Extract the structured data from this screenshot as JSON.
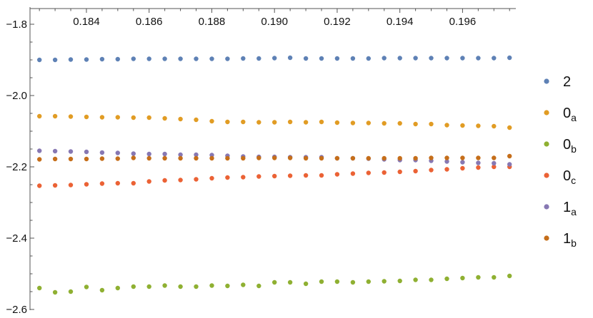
{
  "chart_data": {
    "type": "scatter",
    "title": "",
    "xlabel": "",
    "ylabel": "",
    "xlim": [
      0.1822,
      0.1977
    ],
    "ylim": [
      -2.6,
      -1.75
    ],
    "x_ticks": [
      0.184,
      0.186,
      0.188,
      0.19,
      0.192,
      0.194,
      0.196
    ],
    "x_tick_labels": [
      "0.184",
      "0.186",
      "0.188",
      "0.190",
      "0.192",
      "0.194",
      "0.196"
    ],
    "y_ticks": [
      -1.8,
      -2.0,
      -2.2,
      -2.4,
      -2.6
    ],
    "y_tick_labels": [
      "−1.8",
      "−2.0",
      "−2.2",
      "−2.4",
      "−2.6"
    ],
    "x_axis_position": "top",
    "grid": false,
    "legend_position": "right",
    "x": [
      0.1825,
      0.183,
      0.1835,
      0.184,
      0.1845,
      0.185,
      0.1855,
      0.186,
      0.1865,
      0.187,
      0.1875,
      0.188,
      0.1885,
      0.189,
      0.1895,
      0.19,
      0.1905,
      0.191,
      0.1915,
      0.192,
      0.1925,
      0.193,
      0.1935,
      0.194,
      0.1945,
      0.195,
      0.1955,
      0.196,
      0.1965,
      0.197,
      0.1975
    ],
    "series": [
      {
        "name": "2",
        "label_main": "2",
        "label_sub": "",
        "color": "#5e81b5",
        "values": [
          -1.9,
          -1.9,
          -1.899,
          -1.899,
          -1.898,
          -1.898,
          -1.897,
          -1.897,
          -1.897,
          -1.897,
          -1.897,
          -1.897,
          -1.897,
          -1.896,
          -1.896,
          -1.895,
          -1.894,
          -1.896,
          -1.896,
          -1.896,
          -1.896,
          -1.896,
          -1.895,
          -1.895,
          -1.895,
          -1.895,
          -1.895,
          -1.895,
          -1.895,
          -1.895,
          -1.894
        ]
      },
      {
        "name": "0a",
        "label_main": "0",
        "label_sub": "a",
        "color": "#e19c24",
        "values": [
          -2.058,
          -2.058,
          -2.059,
          -2.06,
          -2.061,
          -2.061,
          -2.062,
          -2.062,
          -2.064,
          -2.066,
          -2.068,
          -2.072,
          -2.074,
          -2.074,
          -2.075,
          -2.075,
          -2.074,
          -2.075,
          -2.074,
          -2.076,
          -2.077,
          -2.077,
          -2.078,
          -2.078,
          -2.08,
          -2.08,
          -2.083,
          -2.084,
          -2.085,
          -2.086,
          -2.09
        ]
      },
      {
        "name": "0b",
        "label_main": "0",
        "label_sub": "b",
        "color": "#8fb032",
        "values": [
          -2.54,
          -2.552,
          -2.55,
          -2.537,
          -2.546,
          -2.54,
          -2.536,
          -2.536,
          -2.533,
          -2.536,
          -2.536,
          -2.533,
          -2.534,
          -2.531,
          -2.534,
          -2.524,
          -2.524,
          -2.528,
          -2.522,
          -2.522,
          -2.524,
          -2.522,
          -2.521,
          -2.52,
          -2.517,
          -2.517,
          -2.514,
          -2.512,
          -2.51,
          -2.51,
          -2.506
        ]
      },
      {
        "name": "0c",
        "label_main": "0",
        "label_sub": "c",
        "color": "#eb6235",
        "values": [
          -2.253,
          -2.252,
          -2.251,
          -2.249,
          -2.247,
          -2.246,
          -2.246,
          -2.241,
          -2.238,
          -2.237,
          -2.235,
          -2.232,
          -2.23,
          -2.229,
          -2.227,
          -2.226,
          -2.225,
          -2.224,
          -2.224,
          -2.221,
          -2.219,
          -2.217,
          -2.216,
          -2.214,
          -2.212,
          -2.209,
          -2.207,
          -2.204,
          -2.202,
          -2.2,
          -2.2
        ]
      },
      {
        "name": "1a",
        "label_main": "1",
        "label_sub": "a",
        "color": "#8778b3",
        "values": [
          -2.155,
          -2.156,
          -2.157,
          -2.158,
          -2.16,
          -2.161,
          -2.163,
          -2.164,
          -2.164,
          -2.166,
          -2.166,
          -2.167,
          -2.169,
          -2.171,
          -2.172,
          -2.172,
          -2.173,
          -2.173,
          -2.173,
          -2.176,
          -2.176,
          -2.177,
          -2.179,
          -2.181,
          -2.181,
          -2.183,
          -2.185,
          -2.187,
          -2.189,
          -2.19,
          -2.193
        ]
      },
      {
        "name": "1b",
        "label_main": "1",
        "label_sub": "b",
        "color": "#c56e1a",
        "values": [
          -2.179,
          -2.178,
          -2.178,
          -2.178,
          -2.177,
          -2.177,
          -2.175,
          -2.176,
          -2.176,
          -2.176,
          -2.176,
          -2.176,
          -2.176,
          -2.176,
          -2.175,
          -2.175,
          -2.175,
          -2.176,
          -2.176,
          -2.176,
          -2.176,
          -2.176,
          -2.176,
          -2.176,
          -2.176,
          -2.175,
          -2.175,
          -2.175,
          -2.175,
          -2.175,
          -2.17
        ]
      }
    ]
  }
}
